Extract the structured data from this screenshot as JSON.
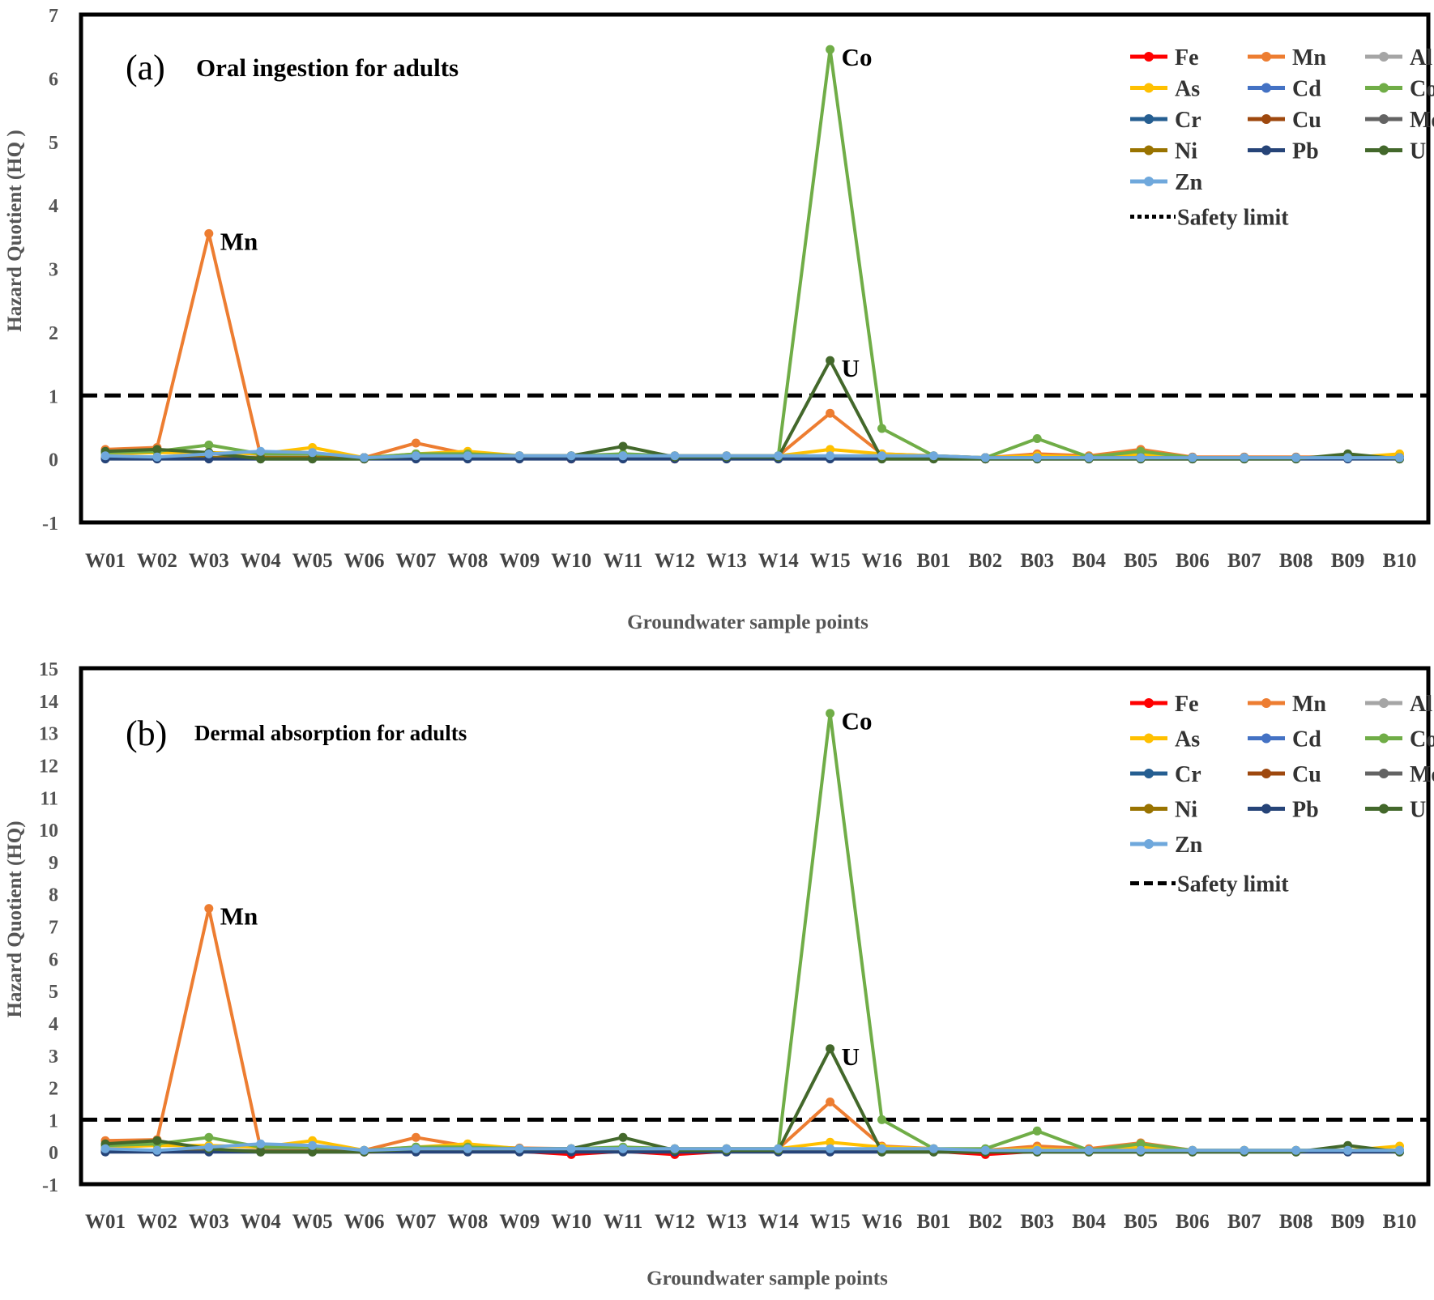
{
  "chart_data": [
    {
      "type": "line",
      "panel_label": "(a)",
      "title": "Oral ingestion for adults",
      "xlabel": "Groundwater  sample points",
      "ylabel": "Hazard  Quotient  (HQ )",
      "ylim": [
        -1,
        7
      ],
      "yticks": [
        "-1",
        "0",
        "1",
        "2",
        "3",
        "4",
        "5",
        "6",
        "7"
      ],
      "grid": false,
      "legend_position": "top-right",
      "categories": [
        "W01",
        "W02",
        "W03",
        "W04",
        "W05",
        "W06",
        "W07",
        "W08",
        "W09",
        "W10",
        "W11",
        "W12",
        "W13",
        "W14",
        "W15",
        "W16",
        "B01",
        "B02",
        "B03",
        "B04",
        "B05",
        "B06",
        "B07",
        "B08",
        "B09",
        "B10"
      ],
      "safety_limit": {
        "label": "Safety limit",
        "value": 1,
        "color": "#000000"
      },
      "annotations": [
        {
          "text": "Mn",
          "category": "W03",
          "value": 3.55
        },
        {
          "text": "Co",
          "category": "W15",
          "value": 6.45
        },
        {
          "text": "U",
          "category": "W15",
          "value": 1.55
        }
      ],
      "series": [
        {
          "name": "Fe",
          "color": "#ff0000",
          "values": [
            0.02,
            0.02,
            0.02,
            0.02,
            0.02,
            0.0,
            0.02,
            0.02,
            0.02,
            0.0,
            0.02,
            0.0,
            0.02,
            0.02,
            0.02,
            0.02,
            0.02,
            0.0,
            0.02,
            0.02,
            0.02,
            0.02,
            0.02,
            0.02,
            0.02,
            0.02
          ]
        },
        {
          "name": "Mn",
          "color": "#ed7d31",
          "values": [
            0.15,
            0.18,
            3.55,
            0.05,
            0.05,
            0.02,
            0.25,
            0.08,
            0.05,
            0.05,
            0.05,
            0.05,
            0.05,
            0.05,
            0.72,
            0.08,
            0.05,
            0.02,
            0.08,
            0.05,
            0.15,
            0.03,
            0.03,
            0.03,
            0.03,
            0.03
          ]
        },
        {
          "name": "Al",
          "color": "#a5a5a5",
          "values": [
            0.03,
            0.03,
            0.03,
            0.03,
            0.03,
            0.02,
            0.03,
            0.03,
            0.03,
            0.03,
            0.03,
            0.03,
            0.03,
            0.03,
            0.03,
            0.03,
            0.03,
            0.02,
            0.03,
            0.03,
            0.03,
            0.02,
            0.02,
            0.02,
            0.02,
            0.02
          ]
        },
        {
          "name": "As",
          "color": "#ffc000",
          "values": [
            0.08,
            0.1,
            0.1,
            0.08,
            0.18,
            0.02,
            0.08,
            0.12,
            0.05,
            0.05,
            0.05,
            0.05,
            0.05,
            0.05,
            0.15,
            0.08,
            0.05,
            0.02,
            0.05,
            0.03,
            0.08,
            0.02,
            0.02,
            0.02,
            0.02,
            0.08
          ]
        },
        {
          "name": "Cd",
          "color": "#4472c4",
          "values": [
            0.02,
            0.02,
            0.02,
            0.02,
            0.02,
            0.02,
            0.02,
            0.02,
            0.02,
            0.02,
            0.02,
            0.02,
            0.02,
            0.02,
            0.02,
            0.02,
            0.02,
            0.02,
            0.02,
            0.02,
            0.02,
            0.02,
            0.02,
            0.02,
            0.02,
            0.02
          ]
        },
        {
          "name": "Co",
          "color": "#70ad47",
          "values": [
            0.1,
            0.12,
            0.22,
            0.08,
            0.08,
            0.02,
            0.08,
            0.08,
            0.05,
            0.05,
            0.08,
            0.05,
            0.05,
            0.05,
            6.45,
            0.48,
            0.05,
            0.02,
            0.32,
            0.03,
            0.12,
            0.02,
            0.02,
            0.02,
            0.02,
            0.02
          ]
        },
        {
          "name": "Cr",
          "color": "#255e91",
          "values": [
            0.02,
            0.02,
            0.02,
            0.02,
            0.02,
            0.02,
            0.02,
            0.02,
            0.02,
            0.02,
            0.02,
            0.02,
            0.02,
            0.02,
            0.02,
            0.02,
            0.02,
            0.02,
            0.02,
            0.02,
            0.02,
            0.02,
            0.02,
            0.02,
            0.02,
            0.02
          ]
        },
        {
          "name": "Cu",
          "color": "#9e480e",
          "values": [
            0.02,
            0.02,
            0.02,
            0.02,
            0.02,
            0.02,
            0.02,
            0.02,
            0.02,
            0.02,
            0.02,
            0.02,
            0.02,
            0.02,
            0.02,
            0.02,
            0.02,
            0.02,
            0.02,
            0.02,
            0.02,
            0.02,
            0.02,
            0.02,
            0.02,
            0.02
          ]
        },
        {
          "name": "Mo",
          "color": "#636363",
          "values": [
            0.02,
            0.02,
            0.02,
            0.02,
            0.02,
            0.02,
            0.02,
            0.02,
            0.02,
            0.02,
            0.02,
            0.02,
            0.02,
            0.02,
            0.02,
            0.02,
            0.02,
            0.02,
            0.02,
            0.02,
            0.02,
            0.02,
            0.02,
            0.02,
            0.02,
            0.02
          ]
        },
        {
          "name": "Ni",
          "color": "#997300",
          "values": [
            0.02,
            0.02,
            0.02,
            0.02,
            0.02,
            0.02,
            0.02,
            0.02,
            0.02,
            0.02,
            0.02,
            0.02,
            0.02,
            0.02,
            0.02,
            0.02,
            0.02,
            0.02,
            0.02,
            0.02,
            0.02,
            0.02,
            0.02,
            0.02,
            0.02,
            0.02
          ]
        },
        {
          "name": "Pb",
          "color": "#264478",
          "values": [
            0.0,
            0.0,
            0.0,
            0.0,
            0.0,
            0.0,
            0.0,
            0.0,
            0.0,
            0.0,
            0.0,
            0.0,
            0.0,
            0.0,
            0.0,
            0.0,
            0.0,
            0.0,
            0.0,
            0.0,
            0.0,
            0.0,
            0.0,
            0.0,
            0.0,
            0.0
          ]
        },
        {
          "name": "U",
          "color": "#43682b",
          "values": [
            0.12,
            0.15,
            0.1,
            0.0,
            0.0,
            0.0,
            0.05,
            0.05,
            0.05,
            0.05,
            0.2,
            0.03,
            0.03,
            0.03,
            1.55,
            0.0,
            0.0,
            0.0,
            0.0,
            0.0,
            0.0,
            0.0,
            0.0,
            0.0,
            0.08,
            0.0
          ]
        },
        {
          "name": "Zn",
          "color": "#6fa8dc",
          "values": [
            0.05,
            0.03,
            0.08,
            0.12,
            0.1,
            0.02,
            0.05,
            0.05,
            0.05,
            0.05,
            0.05,
            0.05,
            0.05,
            0.05,
            0.05,
            0.05,
            0.05,
            0.02,
            0.02,
            0.02,
            0.02,
            0.02,
            0.02,
            0.02,
            0.02,
            0.02
          ]
        }
      ]
    },
    {
      "type": "line",
      "panel_label": "(b)",
      "title": "Dermal absorption for adults",
      "xlabel": "Groundwater  sample points",
      "ylabel": "Hazard  Quotient  (HQ)",
      "ylim": [
        -1,
        15
      ],
      "yticks": [
        "-1",
        "0",
        "1",
        "2",
        "3",
        "4",
        "5",
        "6",
        "7",
        "8",
        "9",
        "10",
        "11",
        "12",
        "13",
        "14",
        "15"
      ],
      "grid": false,
      "legend_position": "top-right",
      "categories": [
        "W01",
        "W02",
        "W03",
        "W04",
        "W05",
        "W06",
        "W07",
        "W08",
        "W09",
        "W10",
        "W11",
        "W12",
        "W13",
        "W14",
        "W15",
        "W16",
        "B01",
        "B02",
        "B03",
        "B04",
        "B05",
        "B06",
        "B07",
        "B08",
        "B09",
        "B10"
      ],
      "safety_limit": {
        "label": "Safety limit",
        "value": 1,
        "color": "#000000"
      },
      "annotations": [
        {
          "text": "Mn",
          "category": "W03",
          "value": 7.55
        },
        {
          "text": "Co",
          "category": "W15",
          "value": 13.6
        },
        {
          "text": "U",
          "category": "W15",
          "value": 3.2
        }
      ],
      "series": [
        {
          "name": "Fe",
          "color": "#ff0000",
          "values": [
            0.02,
            0.02,
            0.02,
            0.02,
            0.02,
            0.0,
            0.02,
            0.02,
            0.02,
            -0.08,
            0.02,
            -0.08,
            0.02,
            0.02,
            0.02,
            0.02,
            0.02,
            -0.08,
            0.02,
            0.02,
            0.02,
            0.02,
            0.02,
            0.02,
            0.02,
            0.02
          ]
        },
        {
          "name": "Mn",
          "color": "#ed7d31",
          "values": [
            0.35,
            0.38,
            7.55,
            0.1,
            0.1,
            0.05,
            0.45,
            0.18,
            0.12,
            0.1,
            0.1,
            0.1,
            0.1,
            0.1,
            1.55,
            0.18,
            0.1,
            0.05,
            0.18,
            0.1,
            0.28,
            0.05,
            0.05,
            0.05,
            0.05,
            0.05
          ]
        },
        {
          "name": "Al",
          "color": "#a5a5a5",
          "values": [
            0.05,
            0.05,
            0.05,
            0.05,
            0.05,
            0.03,
            0.05,
            0.05,
            0.05,
            0.05,
            0.05,
            0.05,
            0.05,
            0.05,
            0.05,
            0.05,
            0.05,
            0.03,
            0.05,
            0.05,
            0.05,
            0.03,
            0.03,
            0.03,
            0.03,
            0.03
          ]
        },
        {
          "name": "As",
          "color": "#ffc000",
          "values": [
            0.15,
            0.2,
            0.2,
            0.15,
            0.35,
            0.05,
            0.15,
            0.25,
            0.1,
            0.1,
            0.1,
            0.1,
            0.1,
            0.1,
            0.3,
            0.15,
            0.1,
            0.05,
            0.1,
            0.05,
            0.15,
            0.05,
            0.05,
            0.05,
            0.05,
            0.18
          ]
        },
        {
          "name": "Cd",
          "color": "#4472c4",
          "values": [
            0.03,
            0.03,
            0.03,
            0.03,
            0.03,
            0.03,
            0.03,
            0.03,
            0.03,
            0.03,
            0.03,
            0.03,
            0.03,
            0.03,
            0.03,
            0.03,
            0.03,
            0.03,
            0.03,
            0.03,
            0.03,
            0.03,
            0.03,
            0.03,
            0.03,
            0.03
          ]
        },
        {
          "name": "Co",
          "color": "#70ad47",
          "values": [
            0.2,
            0.25,
            0.45,
            0.15,
            0.15,
            0.05,
            0.15,
            0.15,
            0.1,
            0.1,
            0.15,
            0.1,
            0.1,
            0.1,
            13.6,
            1.0,
            0.1,
            0.1,
            0.65,
            0.05,
            0.25,
            0.05,
            0.05,
            0.05,
            0.05,
            0.05
          ]
        },
        {
          "name": "Cr",
          "color": "#255e91",
          "values": [
            0.03,
            0.03,
            0.03,
            0.03,
            0.03,
            0.03,
            0.03,
            0.03,
            0.03,
            0.03,
            0.03,
            0.03,
            0.03,
            0.03,
            0.03,
            0.03,
            0.03,
            0.03,
            0.03,
            0.03,
            0.03,
            0.03,
            0.03,
            0.03,
            0.03,
            0.03
          ]
        },
        {
          "name": "Cu",
          "color": "#9e480e",
          "values": [
            0.03,
            0.03,
            0.03,
            0.03,
            0.03,
            0.03,
            0.03,
            0.03,
            0.03,
            0.03,
            0.03,
            0.03,
            0.03,
            0.03,
            0.03,
            0.03,
            0.03,
            0.03,
            0.03,
            0.03,
            0.03,
            0.03,
            0.03,
            0.03,
            0.03,
            0.03
          ]
        },
        {
          "name": "Mo",
          "color": "#636363",
          "values": [
            0.03,
            0.03,
            0.03,
            0.03,
            0.03,
            0.03,
            0.03,
            0.03,
            0.03,
            0.03,
            0.03,
            0.03,
            0.03,
            0.03,
            0.03,
            0.03,
            0.03,
            0.03,
            0.03,
            0.03,
            0.03,
            0.03,
            0.03,
            0.03,
            0.03,
            0.03
          ]
        },
        {
          "name": "Ni",
          "color": "#997300",
          "values": [
            0.02,
            0.02,
            0.02,
            0.02,
            0.02,
            0.02,
            0.02,
            0.02,
            0.02,
            0.02,
            0.02,
            0.02,
            0.02,
            0.02,
            0.02,
            0.02,
            0.02,
            0.02,
            0.02,
            0.02,
            0.02,
            0.02,
            0.02,
            0.02,
            0.02,
            0.02
          ]
        },
        {
          "name": "Pb",
          "color": "#264478",
          "values": [
            0.0,
            0.0,
            0.0,
            0.0,
            0.0,
            0.0,
            0.0,
            0.0,
            0.0,
            0.0,
            0.0,
            0.0,
            0.0,
            0.0,
            0.0,
            0.0,
            0.0,
            0.0,
            0.0,
            0.0,
            0.0,
            0.0,
            0.0,
            0.0,
            0.0,
            0.0
          ]
        },
        {
          "name": "U",
          "color": "#43682b",
          "values": [
            0.25,
            0.35,
            0.1,
            0.0,
            0.0,
            0.0,
            0.1,
            0.1,
            0.1,
            0.1,
            0.45,
            0.05,
            0.05,
            0.05,
            3.2,
            0.0,
            0.0,
            0.0,
            0.0,
            0.0,
            0.0,
            0.0,
            0.0,
            0.0,
            0.2,
            0.0
          ]
        },
        {
          "name": "Zn",
          "color": "#6fa8dc",
          "values": [
            0.1,
            0.05,
            0.15,
            0.25,
            0.2,
            0.05,
            0.1,
            0.1,
            0.1,
            0.1,
            0.1,
            0.1,
            0.1,
            0.1,
            0.1,
            0.1,
            0.1,
            0.05,
            0.05,
            0.05,
            0.05,
            0.05,
            0.05,
            0.05,
            0.05,
            0.05
          ]
        }
      ]
    }
  ]
}
